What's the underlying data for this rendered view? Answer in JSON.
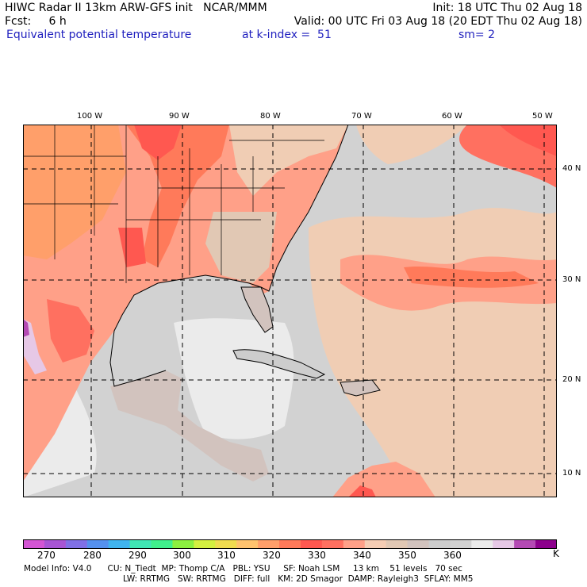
{
  "header": {
    "line1_left": "HIWC Radar II 13km ARW-GFS init   NCAR/MMM",
    "line1_right": "Init: 18 UTC Thu 02 Aug 18",
    "line2_left": "Fcst:     6 h",
    "line2_right": "Valid: 00 UTC Fri 03 Aug 18 (20 EDT Thu 02 Aug 18)",
    "field_name": "Equivalent potential temperature",
    "level": "at k-index =  51",
    "smoothing": "sm= 2"
  },
  "map": {
    "lon_labels": [
      "100 W",
      "90 W",
      "80 W",
      "70 W",
      "60 W",
      "50 W"
    ],
    "lat_labels": [
      "40 N",
      "30 N",
      "20 N",
      "10 N"
    ]
  },
  "colorbar": {
    "colors": [
      "#d455d4",
      "#a855d4",
      "#8070e6",
      "#5591ee",
      "#40b4ee",
      "#40e6b4",
      "#40f08c",
      "#8cf040",
      "#d4f040",
      "#f0dc50",
      "#ffc36e",
      "#ff9f6a",
      "#ff7a5a",
      "#ff5850",
      "#ff7060",
      "#ffa088",
      "#f5cdb4",
      "#e1c8b4",
      "#d2c3be",
      "#cdcdcd",
      "#d2d2d2",
      "#ebebeb",
      "#e6c8e6",
      "#b44ab4",
      "#8c008c"
    ],
    "labels": [
      "270",
      "280",
      "290",
      "300",
      "310",
      "320",
      "330",
      "340",
      "350",
      "360"
    ],
    "unit": "K"
  },
  "footer": {
    "line1": "Model Info: V4.0      CU: N_Tiedt  MP: Thomp C/A   PBL: YSU     SF: Noah LSM     13 km    51 levels   70 sec",
    "line2": "LW: RRTMG   SW: RRTMG   DIFF: full   KM: 2D Smagor  DAMP: Rayleigh3  SFLAY: MM5"
  }
}
